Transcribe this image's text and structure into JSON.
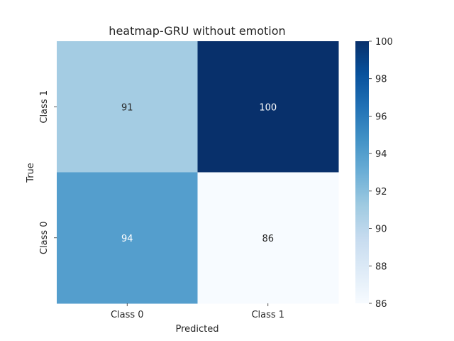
{
  "chart_data": {
    "type": "heatmap",
    "title": "heatmap-GRU without emotion",
    "xlabel": "Predicted",
    "ylabel": "True",
    "x_categories": [
      "Class 0",
      "Class 1"
    ],
    "y_categories_top_to_bottom": [
      "Class 1",
      "Class 0"
    ],
    "cells": [
      [
        91,
        100
      ],
      [
        94,
        86
      ]
    ],
    "colormap": "Blues",
    "vmin": 86,
    "vmax": 100,
    "colorbar_ticks": [
      86,
      88,
      90,
      92,
      94,
      96,
      98,
      100
    ],
    "annot_dark_color": "#262626",
    "annot_light_color": "#ffffff"
  }
}
